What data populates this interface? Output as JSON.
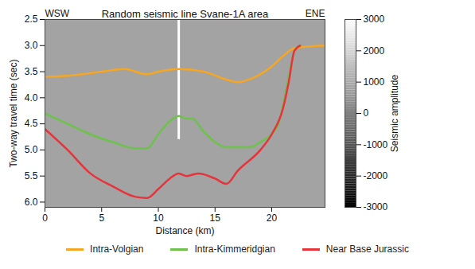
{
  "chart_data": {
    "type": "line",
    "title": "Random seismic line Svane-1A area",
    "annotations": {
      "left": "WSW",
      "right": "ENE"
    },
    "x_label": "Distance (km)",
    "y_label": "Two-way travel time (sec)",
    "xlim": [
      0,
      24.7
    ],
    "ylim": [
      2.5,
      6.1
    ],
    "xticks": [
      0,
      5,
      10,
      15,
      20
    ],
    "yticks": [
      2.5,
      {
        "value": 3.0,
        "label": "3.0"
      },
      3.5,
      {
        "value": 4.0,
        "label": "4.0"
      },
      4.5,
      {
        "value": 5.0,
        "label": "5.0"
      },
      5.5,
      {
        "value": 6.0,
        "label": "6.0"
      }
    ],
    "legend": "bottom",
    "well": {
      "x": 11.8,
      "y": [
        2.5,
        4.8
      ],
      "color": "#ffffff"
    },
    "series": [
      {
        "name": "Intra-Volgian",
        "color": "#f5a623",
        "x": [
          0,
          2,
          5,
          7,
          9,
          10,
          11.8,
          14,
          16,
          17,
          18,
          20,
          21,
          22,
          24.7
        ],
        "values": [
          3.6,
          3.58,
          3.5,
          3.45,
          3.55,
          3.5,
          3.45,
          3.5,
          3.65,
          3.7,
          3.65,
          3.4,
          3.2,
          3.05,
          3.0
        ]
      },
      {
        "name": "Intra-Kimmeridgian",
        "color": "#6cc24a",
        "x": [
          0,
          2,
          4,
          6,
          8,
          9,
          10,
          11,
          11.8,
          12.5,
          13,
          14,
          15,
          16,
          18,
          19,
          20.5,
          21.5,
          22,
          22.5
        ],
        "values": [
          4.3,
          4.5,
          4.7,
          4.85,
          4.97,
          4.97,
          4.7,
          4.45,
          4.35,
          4.4,
          4.4,
          4.65,
          4.85,
          4.95,
          4.95,
          4.85,
          4.55,
          3.6,
          3.1,
          3.0
        ]
      },
      {
        "name": "Near Base Jurassic",
        "color": "#e8333a",
        "x": [
          0,
          2,
          4,
          6,
          8,
          9,
          10,
          11,
          11.8,
          12.5,
          13.5,
          15,
          16,
          17,
          19,
          20,
          21,
          21.5,
          22,
          22.5
        ],
        "values": [
          4.6,
          5.0,
          5.45,
          5.7,
          5.9,
          5.92,
          5.75,
          5.55,
          5.45,
          5.5,
          5.45,
          5.55,
          5.65,
          5.4,
          5.0,
          4.7,
          4.2,
          3.7,
          3.1,
          3.0
        ]
      }
    ],
    "colorbar": {
      "label": "Seismic amplitude",
      "lim": [
        -3000,
        3000
      ],
      "ticks": [
        -3000,
        -2000,
        -1000,
        0,
        1000,
        2000,
        3000
      ],
      "colors": [
        "#000000",
        "#ffffff"
      ]
    }
  }
}
